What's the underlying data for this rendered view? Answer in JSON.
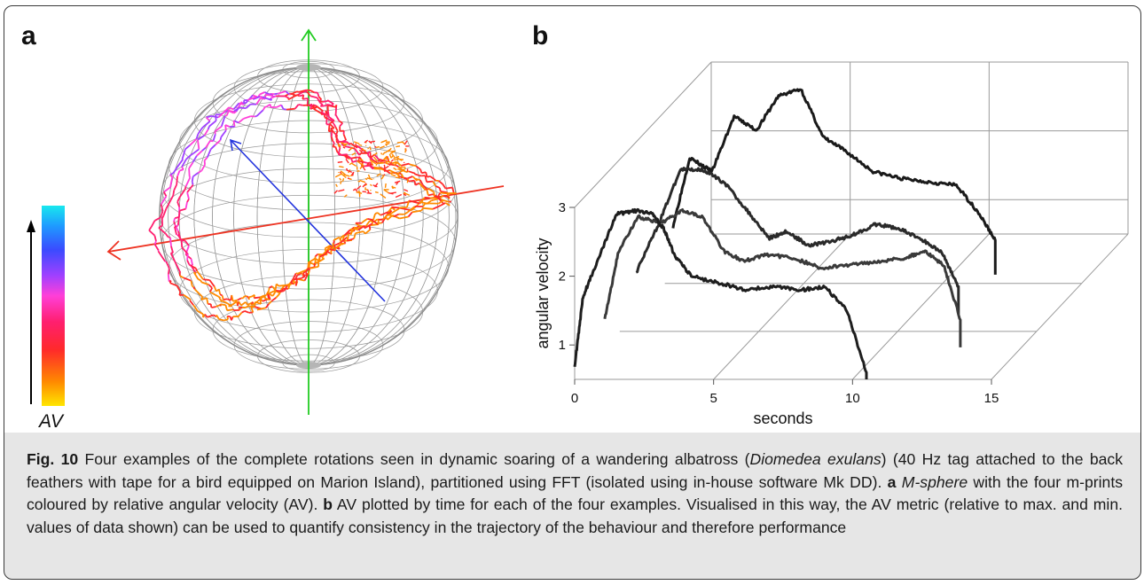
{
  "panel_a": {
    "label": "a",
    "legend_label": "AV",
    "colorbar_colors": [
      "#ffe600",
      "#ff8a00",
      "#ff2a2a",
      "#ff1f6f",
      "#ff3fd8",
      "#a040ff",
      "#3a4bff",
      "#1e9bff",
      "#18e8ee"
    ]
  },
  "panel_b": {
    "label": "b"
  },
  "chart_data": {
    "type": "line",
    "xlabel": "seconds",
    "ylabel": "angular velocity",
    "xlim": [
      0,
      15
    ],
    "ylim": [
      0.5,
      3
    ],
    "xticks": [
      "0",
      "5",
      "10",
      "15"
    ],
    "yticks": [
      "1",
      "2",
      "3"
    ],
    "grid": true,
    "series": [
      {
        "x": [
          0,
          0.3,
          0.8,
          1.5,
          2.2,
          2.8,
          3.2,
          3.6,
          4.2,
          5.2,
          6.2,
          7.2,
          8.2,
          9.0,
          9.8,
          10.5
        ],
        "values": [
          0.7,
          1.7,
          2.2,
          2.9,
          2.95,
          2.9,
          2.7,
          2.3,
          2.0,
          1.9,
          1.8,
          1.85,
          1.8,
          1.85,
          1.5,
          0.6
        ]
      },
      {
        "x": [
          0,
          0.5,
          1.2,
          2.0,
          2.8,
          3.5,
          4.3,
          5.0,
          5.8,
          6.8,
          7.8,
          8.8,
          9.8,
          10.8,
          11.5,
          12.2,
          12.8
        ],
        "values": [
          0.9,
          1.9,
          2.4,
          2.3,
          2.5,
          2.4,
          1.9,
          1.75,
          1.85,
          1.8,
          1.65,
          1.7,
          1.75,
          1.8,
          1.9,
          1.7,
          0.9
        ]
      },
      {
        "x": [
          0,
          0.8,
          1.6,
          2.4,
          3.2,
          4.0,
          4.8,
          5.4,
          6.2,
          7.0,
          7.8,
          8.6,
          9.4,
          10.2,
          11.0,
          11.6
        ],
        "values": [
          1.1,
          1.8,
          2.6,
          2.6,
          2.4,
          2.0,
          1.6,
          1.7,
          1.5,
          1.55,
          1.65,
          1.8,
          1.75,
          1.6,
          1.4,
          0.9
        ]
      },
      {
        "x": [
          0,
          0.6,
          1.4,
          2.2,
          3.0,
          3.8,
          4.6,
          5.4,
          6.2,
          7.2,
          8.2,
          9.2,
          10.2,
          11.0,
          11.6
        ],
        "values": [
          1.2,
          2.2,
          2.0,
          2.8,
          2.6,
          3.1,
          3.2,
          2.5,
          2.3,
          2.0,
          1.9,
          1.85,
          1.8,
          1.4,
          1.0
        ]
      }
    ]
  },
  "caption": {
    "fig_label": "Fig. 10",
    "part1": " Four examples of the complete rotations seen in dynamic soaring of a wandering albatross (",
    "species": "Diomedea exulans",
    "part2": ") (40 Hz tag attached to the back feathers with tape for a bird equipped on Marion Island), partitioned using FFT (isolated using in-house software Mk DD). ",
    "a_label": "a",
    "a_term": "M-sphere",
    "part3": " with the four m-prints coloured by relative angular velocity (AV). ",
    "b_label": "b",
    "part4": " AV plotted by time for each of the four examples. Visualised in this way, the AV metric (relative to max. and min. values of data shown) can be used to quantify consistency in the trajectory of the behaviour and therefore performance"
  }
}
